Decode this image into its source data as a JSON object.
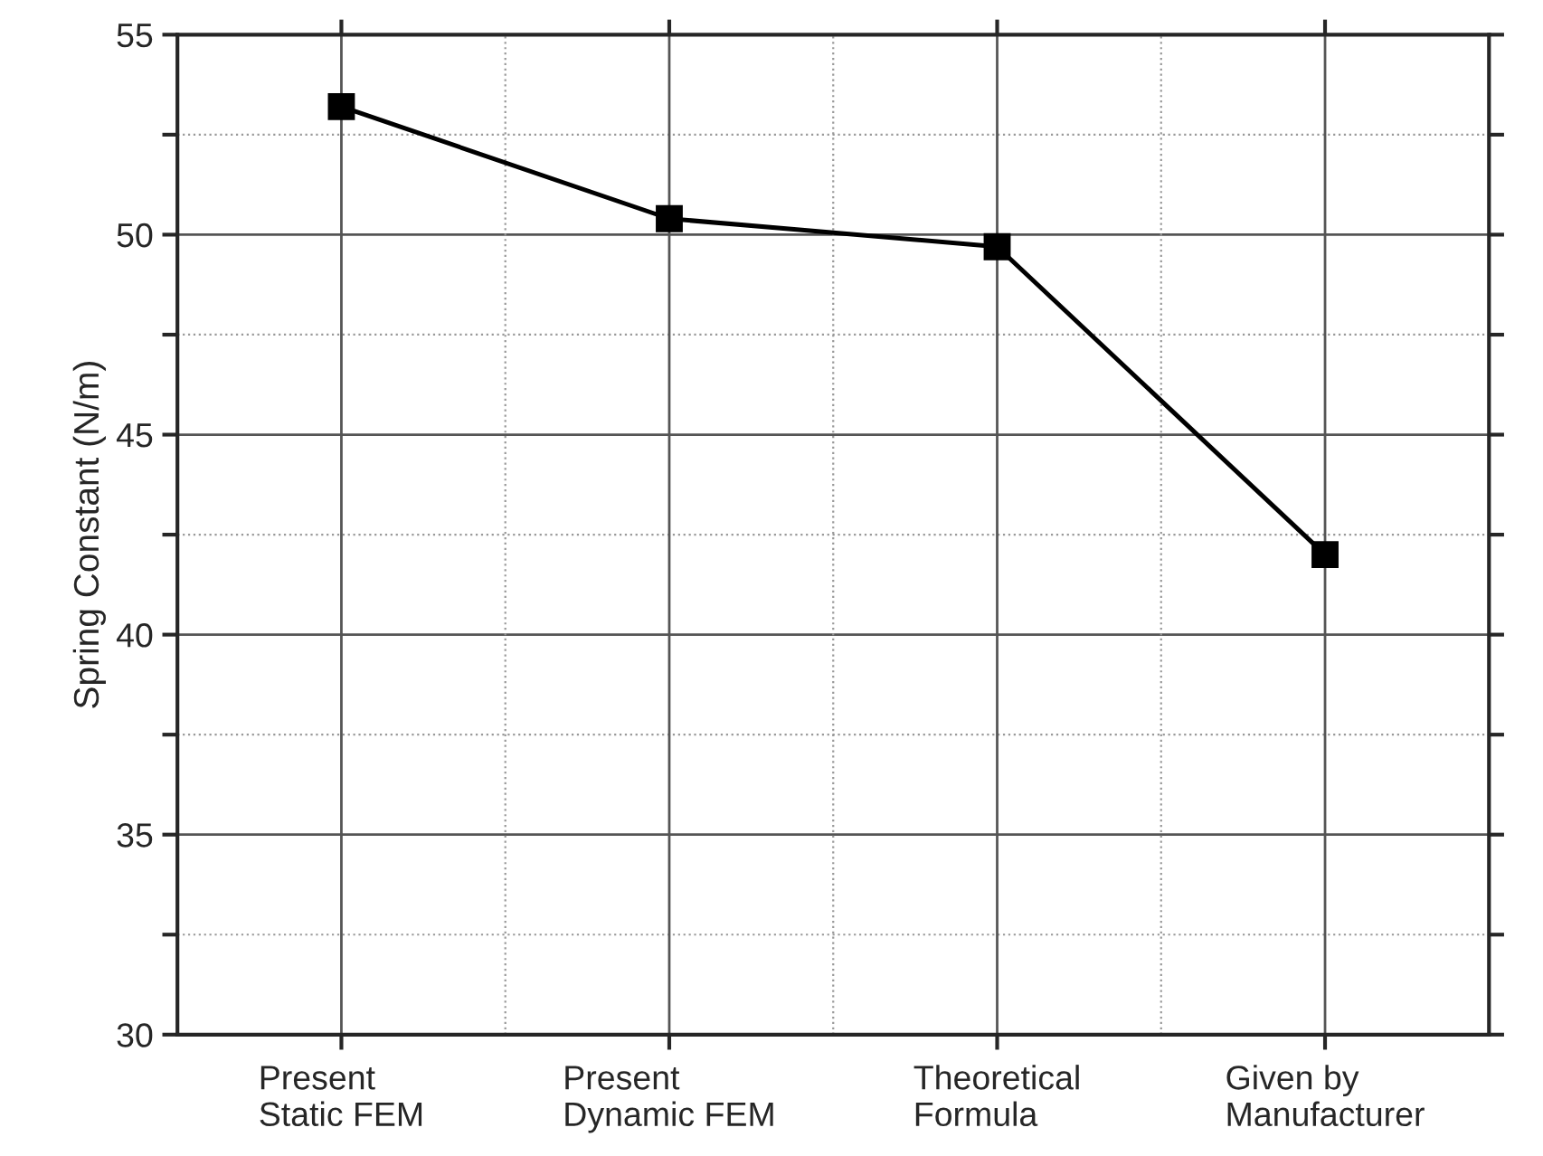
{
  "chart_data": {
    "type": "line",
    "ylabel": "Spring Constant (N/m)",
    "categories": [
      "Present\nStatic FEM",
      "Present\nDynamic FEM",
      "Theoretical\nFormula",
      "Given by\nManufacturer"
    ],
    "series": [
      {
        "color": "#000000",
        "values": [
          53.2,
          50.4,
          49.7,
          42.0
        ]
      }
    ],
    "ylim": [
      30,
      55
    ],
    "yticks": [
      30,
      {
        "value": 32.5,
        "label": null
      },
      35,
      {
        "value": 37.5,
        "label": null
      },
      40,
      {
        "value": 42.5,
        "label": null
      },
      45,
      {
        "value": 47.5,
        "label": null
      },
      50,
      {
        "value": 52.5,
        "label": null
      },
      55
    ],
    "grid": true,
    "marker": "square",
    "line_style": "solid",
    "legend": false
  }
}
